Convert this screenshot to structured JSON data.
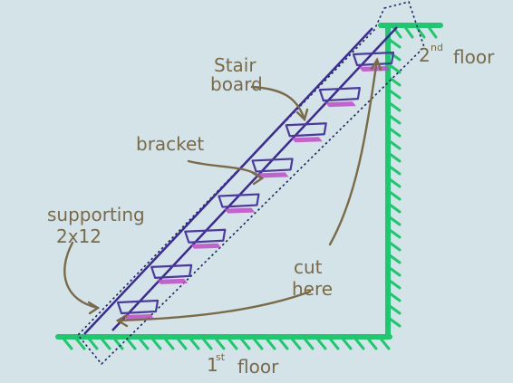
{
  "labels": {
    "stair_board_1": "Stair",
    "stair_board_2": "board",
    "bracket": "bracket",
    "supporting_1": "supporting",
    "supporting_2": "2x12",
    "cut_here_1": "cut",
    "cut_here_2": "here",
    "floor_2_num": "2",
    "floor_2_sup": "nd",
    "floor_2_word": "floor",
    "floor_1_num": "1",
    "floor_1_sup": "st",
    "floor_1_word": "floor"
  },
  "colors": {
    "background": "#d3e3e8",
    "floor": "#1ec86e",
    "stringer": "#3c2a95",
    "step_outline": "#4a3aa0",
    "bracket": "#c04bc8",
    "cut_line": "#1a2860",
    "annotation": "#7a6a48"
  },
  "steps_count": 8
}
